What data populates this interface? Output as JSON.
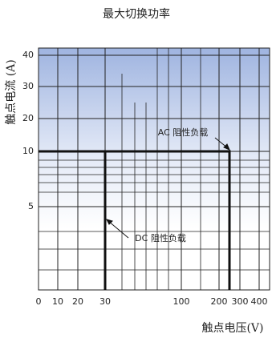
{
  "chart_data": {
    "type": "line",
    "title": "最大切换功率",
    "x_label": "触点电压(V)",
    "y_label": "触点电流 (A)",
    "xticks": [
      0,
      10,
      20,
      30,
      100,
      200,
      300,
      400
    ],
    "xlim": [
      0,
      450
    ],
    "yticks": [
      5,
      10,
      20,
      30,
      40
    ],
    "ylim": [
      2,
      45
    ],
    "grid": true,
    "series": [
      {
        "name": "AC 阻性负载",
        "color": "#111111",
        "x": [
          0,
          250,
          250
        ],
        "values": [
          10,
          10,
          2
        ]
      },
      {
        "name": "DC 阻性负载",
        "color": "#111111",
        "x": [
          30,
          30
        ],
        "values": [
          10,
          2
        ]
      }
    ]
  }
}
